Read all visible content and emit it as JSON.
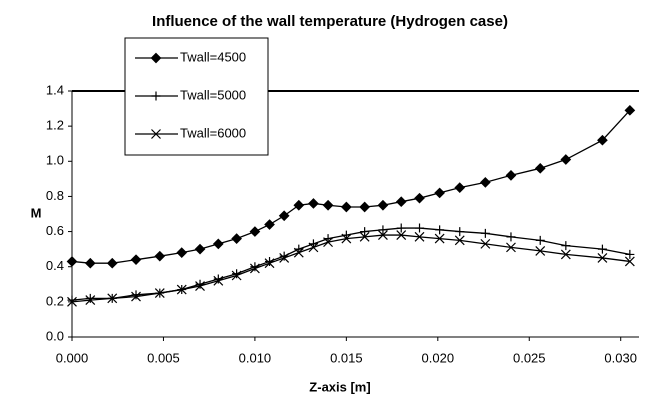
{
  "chart_data": {
    "type": "line",
    "title": "Influence of the wall temperature (Hydrogen case)",
    "x_label": "Z-axis [m]",
    "y_label": "M",
    "xlim": [
      0,
      0.031
    ],
    "ylim": [
      0,
      1.4
    ],
    "xticks": [
      {
        "value": 0,
        "label": "0.000"
      },
      {
        "value": 0.005,
        "label": "0.005"
      },
      {
        "value": 0.01,
        "label": "0.010"
      },
      {
        "value": 0.015,
        "label": "0.015"
      },
      {
        "value": 0.02,
        "label": "0.020"
      },
      {
        "value": 0.025,
        "label": "0.025"
      },
      {
        "value": 0.03,
        "label": "0.030"
      }
    ],
    "yticks": [
      {
        "value": 0,
        "label": "0.0"
      },
      {
        "value": 0.2,
        "label": "0.2"
      },
      {
        "value": 0.4,
        "label": "0.4"
      },
      {
        "value": 0.6,
        "label": "0.6"
      },
      {
        "value": 0.8,
        "label": "0.8"
      },
      {
        "value": 1,
        "label": "1.0"
      },
      {
        "value": 1.2,
        "label": "1.2"
      },
      {
        "value": 1.4,
        "label": "1.4"
      }
    ],
    "x": [
      0,
      0.001,
      0.0022,
      0.0035,
      0.0048,
      0.006,
      0.007,
      0.008,
      0.009,
      0.01,
      0.0108,
      0.0116,
      0.0124,
      0.0132,
      0.014,
      0.015,
      0.016,
      0.017,
      0.018,
      0.019,
      0.0201,
      0.0212,
      0.0226,
      0.024,
      0.0256,
      0.027,
      0.029,
      0.0305
    ],
    "series": [
      {
        "name": "Twall=4500",
        "color": "#000000",
        "marker": "diamond",
        "values": [
          0.43,
          0.42,
          0.42,
          0.44,
          0.46,
          0.48,
          0.5,
          0.53,
          0.56,
          0.6,
          0.64,
          0.69,
          0.75,
          0.76,
          0.75,
          0.74,
          0.74,
          0.75,
          0.77,
          0.79,
          0.82,
          0.85,
          0.88,
          0.92,
          0.96,
          1.01,
          1.12,
          1.29
        ]
      },
      {
        "name": "Twall=5000",
        "color": "#000000",
        "marker": "plus",
        "values": [
          0.21,
          0.22,
          0.22,
          0.24,
          0.25,
          0.27,
          0.3,
          0.33,
          0.36,
          0.4,
          0.43,
          0.46,
          0.5,
          0.53,
          0.56,
          0.58,
          0.6,
          0.61,
          0.62,
          0.62,
          0.61,
          0.6,
          0.59,
          0.57,
          0.55,
          0.52,
          0.5,
          0.47
        ]
      },
      {
        "name": "Twall=6000",
        "color": "#000000",
        "marker": "cross",
        "values": [
          0.2,
          0.21,
          0.22,
          0.23,
          0.25,
          0.27,
          0.29,
          0.32,
          0.35,
          0.39,
          0.42,
          0.45,
          0.48,
          0.51,
          0.54,
          0.56,
          0.57,
          0.58,
          0.58,
          0.57,
          0.56,
          0.55,
          0.53,
          0.51,
          0.49,
          0.47,
          0.45,
          0.43
        ]
      }
    ]
  }
}
